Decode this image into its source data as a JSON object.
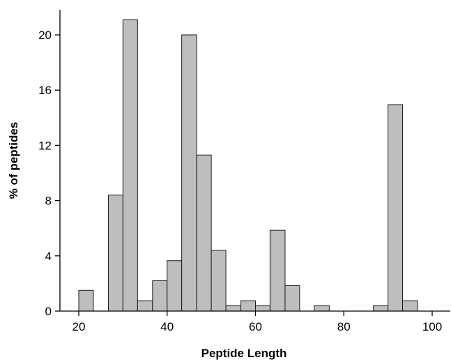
{
  "chart_data": {
    "type": "bar",
    "subtype": "histogram",
    "title": "",
    "xlabel": "Peptide Length",
    "ylabel": "% of peptides",
    "xlim": [
      15,
      105
    ],
    "ylim": [
      0,
      22
    ],
    "xticks": [
      20,
      40,
      60,
      80,
      100
    ],
    "yticks": [
      0,
      4,
      8,
      12,
      16,
      20
    ],
    "grid": false,
    "bar_color": "#bebebe",
    "edge_color": "#1a1a1a",
    "bins": [
      {
        "start": 20.0,
        "end": 23.3,
        "value": 1.5
      },
      {
        "start": 23.3,
        "end": 26.7,
        "value": 0
      },
      {
        "start": 26.7,
        "end": 30.0,
        "value": 8.4
      },
      {
        "start": 30.0,
        "end": 33.3,
        "value": 21.1
      },
      {
        "start": 33.3,
        "end": 36.7,
        "value": 0.75
      },
      {
        "start": 36.7,
        "end": 40.0,
        "value": 2.2
      },
      {
        "start": 40.0,
        "end": 43.3,
        "value": 3.65
      },
      {
        "start": 43.3,
        "end": 46.7,
        "value": 20.0
      },
      {
        "start": 46.7,
        "end": 50.0,
        "value": 11.3
      },
      {
        "start": 50.0,
        "end": 53.3,
        "value": 4.4
      },
      {
        "start": 53.3,
        "end": 56.7,
        "value": 0.4
      },
      {
        "start": 56.7,
        "end": 60.0,
        "value": 0.75
      },
      {
        "start": 60.0,
        "end": 63.3,
        "value": 0.4
      },
      {
        "start": 63.3,
        "end": 66.7,
        "value": 5.85
      },
      {
        "start": 66.7,
        "end": 70.0,
        "value": 1.85
      },
      {
        "start": 70.0,
        "end": 73.3,
        "value": 0
      },
      {
        "start": 73.3,
        "end": 76.7,
        "value": 0.4
      },
      {
        "start": 76.7,
        "end": 80.0,
        "value": 0
      },
      {
        "start": 80.0,
        "end": 83.3,
        "value": 0
      },
      {
        "start": 83.3,
        "end": 86.7,
        "value": 0
      },
      {
        "start": 86.7,
        "end": 90.0,
        "value": 0.4
      },
      {
        "start": 90.0,
        "end": 93.3,
        "value": 14.95
      },
      {
        "start": 93.3,
        "end": 96.7,
        "value": 0.75
      }
    ]
  }
}
